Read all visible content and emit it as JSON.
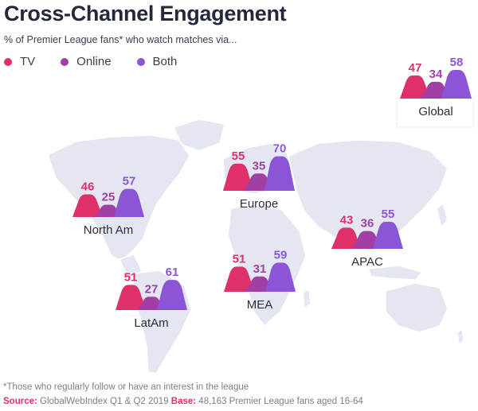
{
  "title": "Cross-Channel Engagement",
  "subtitle": "% of Premier League fans* who watch matches via...",
  "legend": [
    {
      "label": "TV",
      "color": "#e0306a"
    },
    {
      "label": "Online",
      "color": "#a23fa6"
    },
    {
      "label": "Both",
      "color": "#8a56d6"
    }
  ],
  "footnote": "*Those who regularly follow or have an interest in the league",
  "source": {
    "source_label": "Source:",
    "source_text": "GlobalWebIndex Q1 & Q2 2019",
    "base_label": "Base:",
    "base_text": "48,163 Premier League fans aged 16-64"
  },
  "chart_data": {
    "type": "bar",
    "title": "Cross-Channel Engagement",
    "ylabel": "% of Premier League fans",
    "series_names": [
      "TV",
      "Online",
      "Both"
    ],
    "regions": [
      {
        "name": "Global",
        "values": [
          47,
          34,
          58
        ]
      },
      {
        "name": "Europe",
        "values": [
          55,
          35,
          70
        ]
      },
      {
        "name": "North Am",
        "values": [
          46,
          25,
          57
        ]
      },
      {
        "name": "APAC",
        "values": [
          43,
          36,
          55
        ]
      },
      {
        "name": "MEA",
        "values": [
          51,
          31,
          59
        ]
      },
      {
        "name": "LatAm",
        "values": [
          51,
          27,
          61
        ]
      }
    ]
  }
}
